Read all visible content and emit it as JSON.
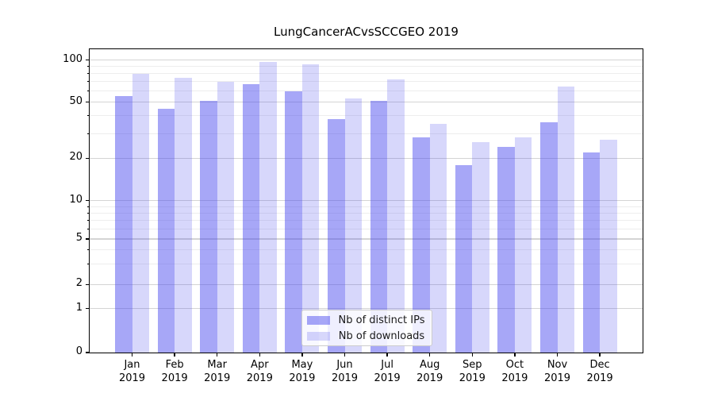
{
  "figure": {
    "title": "LungCancerACvsSCCGEO 2019"
  },
  "legend": {
    "items": [
      {
        "label": "Nb of distinct IPs",
        "series": "ips"
      },
      {
        "label": "Nb of downloads",
        "series": "downloads"
      }
    ],
    "position": "lower-center-inside"
  },
  "chart_data": {
    "type": "bar",
    "title": "LungCancerACvsSCCGEO 2019",
    "categories": [
      "Jan 2019",
      "Feb 2019",
      "Mar 2019",
      "Apr 2019",
      "May 2019",
      "Jun 2019",
      "Jul 2019",
      "Aug 2019",
      "Sep 2019",
      "Oct 2019",
      "Nov 2019",
      "Dec 2019"
    ],
    "x_tick_months": [
      "Jan",
      "Feb",
      "Mar",
      "Apr",
      "May",
      "Jun",
      "Jul",
      "Aug",
      "Sep",
      "Oct",
      "Nov",
      "Dec"
    ],
    "x_tick_year": "2019",
    "series": [
      {
        "name": "Nb of distinct IPs",
        "key": "ips",
        "values": [
          55,
          45,
          51,
          67,
          60,
          38,
          51,
          28,
          18,
          24,
          36,
          22
        ]
      },
      {
        "name": "Nb of downloads",
        "key": "downloads",
        "values": [
          80,
          75,
          70,
          97,
          93,
          53,
          73,
          35,
          26,
          28,
          65,
          27
        ]
      }
    ],
    "xlabel": "",
    "ylabel": "",
    "y_axis": {
      "scale": "symlog",
      "major_ticks": [
        0,
        1,
        2,
        5,
        10,
        20,
        50,
        100
      ],
      "minor_gridlines": [
        3,
        4,
        6,
        7,
        8,
        9,
        30,
        40,
        60,
        70,
        80,
        90
      ],
      "ylim": [
        0,
        120
      ]
    },
    "grid": true,
    "colors": {
      "bar_base": "#4444ee",
      "ips_alpha": 0.47,
      "downloads_alpha": 0.21,
      "grid_major": "#d4d4d4",
      "grid_minor": "#ededed",
      "spine": "#000000",
      "legend_border": "#cccccc"
    }
  }
}
